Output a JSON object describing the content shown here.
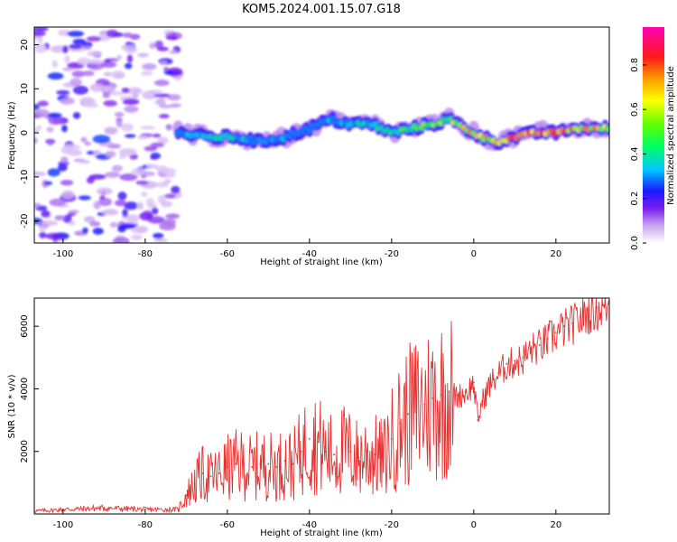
{
  "figure": {
    "title": "KOM5.2024.001.15.07.G18"
  },
  "chart_data": [
    {
      "type": "heatmap",
      "title": "KOM5.2024.001.15.07.G18",
      "xlabel": "Height of straight line (km)",
      "ylabel": "Frequency (Hz)",
      "xlim": [
        -107,
        33
      ],
      "ylim": [
        -25,
        24
      ],
      "x_ticks": [
        -100,
        -80,
        -60,
        -40,
        -20,
        0,
        20
      ],
      "y_ticks": [
        -20,
        -10,
        0,
        10,
        20
      ],
      "colorbar": {
        "label": "Normalized spectral amplitude",
        "range": [
          0,
          0.97
        ],
        "ticks": [
          0.0,
          0.2,
          0.4,
          0.6,
          0.8
        ],
        "colormap": "hsv rainbow (white-purple-blue-cyan-green-yellow-orange-red-magenta)"
      },
      "ridge": {
        "description": "dominant frequency ridge",
        "x": [
          -72,
          -65,
          -58,
          -52,
          -46,
          -40,
          -35,
          -30,
          -25,
          -20,
          -15,
          -10,
          -6,
          -2,
          2,
          6,
          10,
          15,
          20,
          25,
          33
        ],
        "frequency": [
          0,
          -1,
          -1,
          -2,
          -1,
          1,
          3,
          2,
          2,
          0,
          1,
          2,
          3,
          1,
          -1,
          -2,
          -1,
          0,
          0,
          1,
          1
        ],
        "amplitude": [
          0.3,
          0.45,
          0.4,
          0.3,
          0.35,
          0.25,
          0.35,
          0.35,
          0.4,
          0.45,
          0.5,
          0.6,
          0.55,
          0.7,
          0.75,
          0.7,
          0.8,
          0.85,
          0.85,
          0.75,
          0.7
        ]
      },
      "noise_region_x": [
        -107,
        -72
      ]
    },
    {
      "type": "line",
      "xlabel": "Height of straight line (km)",
      "ylabel": "SNR (10 * v/v)",
      "xlim": [
        -107,
        33
      ],
      "ylim": [
        0,
        6900
      ],
      "x_ticks": [
        -100,
        -80,
        -60,
        -40,
        -20,
        0,
        20
      ],
      "y_ticks": [
        2000,
        4000,
        6000
      ],
      "series": [
        {
          "color": "#e8312f",
          "x": [
            -107,
            -100,
            -90,
            -80,
            -72,
            -70,
            -68,
            -66,
            -64,
            -62,
            -60,
            -58,
            -56,
            -54,
            -52,
            -50,
            -48,
            -46,
            -44,
            -42,
            -40,
            -38,
            -36,
            -34,
            -32,
            -30,
            -28,
            -26,
            -24,
            -22,
            -20,
            -18,
            -16,
            -14,
            -12,
            -10,
            -8,
            -6,
            -4,
            -2,
            0,
            1,
            2,
            4,
            6,
            8,
            10,
            12,
            14,
            16,
            18,
            20,
            22,
            24,
            26,
            28,
            30,
            33
          ],
          "values": [
            100,
            150,
            200,
            150,
            150,
            600,
            1000,
            1300,
            1200,
            1300,
            1500,
            1600,
            1600,
            1500,
            1600,
            1600,
            1500,
            1700,
            1600,
            2000,
            2400,
            2300,
            2000,
            1900,
            2100,
            2000,
            1800,
            2000,
            1900,
            1800,
            2400,
            2900,
            3200,
            3400,
            3500,
            3700,
            3800,
            3900,
            3800,
            3900,
            4200,
            3000,
            3600,
            4200,
            4500,
            4800,
            4900,
            5000,
            5300,
            5400,
            5600,
            5800,
            6000,
            6100,
            6300,
            6500,
            6600,
            6700
          ]
        }
      ]
    }
  ]
}
